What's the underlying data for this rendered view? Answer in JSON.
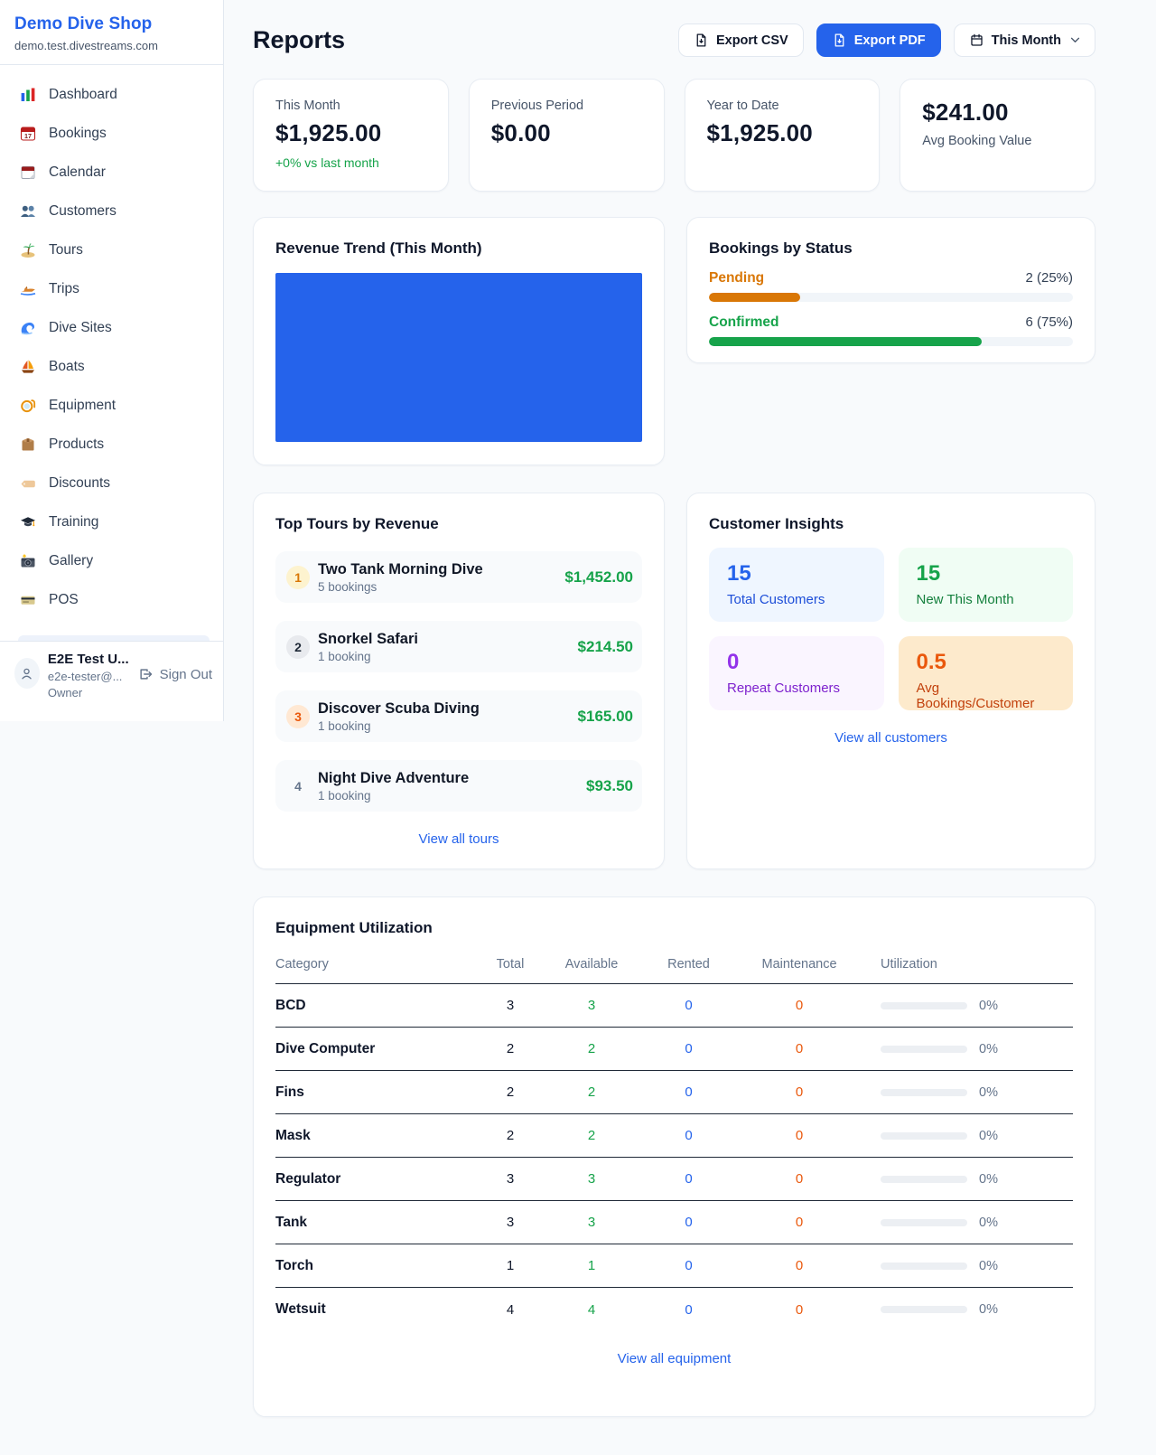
{
  "colors": {
    "accent": "#2563eb",
    "money_green": "#16a34a",
    "pending_orange": "#d97706",
    "maintenance_orange": "#ea580c",
    "rented_blue": "#2563eb"
  },
  "sidebar": {
    "shop_name": "Demo Dive Shop",
    "shop_domain": "demo.test.divestreams.com",
    "nav": [
      {
        "label": "Dashboard",
        "icon": "bar-chart-icon"
      },
      {
        "label": "Bookings",
        "icon": "calendar-date-icon"
      },
      {
        "label": "Calendar",
        "icon": "tear-calendar-icon"
      },
      {
        "label": "Customers",
        "icon": "people-icon"
      },
      {
        "label": "Tours",
        "icon": "island-icon"
      },
      {
        "label": "Trips",
        "icon": "speedboat-icon"
      },
      {
        "label": "Dive Sites",
        "icon": "wave-icon"
      },
      {
        "label": "Boats",
        "icon": "sailboat-icon"
      },
      {
        "label": "Equipment",
        "icon": "dive-mask-icon"
      },
      {
        "label": "Products",
        "icon": "package-icon"
      },
      {
        "label": "Discounts",
        "icon": "tag-icon"
      },
      {
        "label": "Training",
        "icon": "graduation-cap-icon"
      },
      {
        "label": "Gallery",
        "icon": "camera-icon"
      },
      {
        "label": "POS",
        "icon": "credit-card-icon"
      }
    ],
    "user": {
      "name": "E2E Test U...",
      "email": "e2e-tester@...",
      "role": "Owner",
      "sign_out": "Sign Out"
    }
  },
  "header": {
    "title": "Reports",
    "export_csv": "Export CSV",
    "export_pdf": "Export PDF",
    "period": "This Month"
  },
  "stats": {
    "this_month": {
      "label": "This Month",
      "value": "$1,925.00",
      "delta": "+0% vs last month"
    },
    "previous_period": {
      "label": "Previous Period",
      "value": "$0.00"
    },
    "year_to_date": {
      "label": "Year to Date",
      "value": "$1,925.00"
    },
    "avg_booking": {
      "label": "Avg Booking Value",
      "value": "$241.00"
    }
  },
  "revenue_trend": {
    "title": "Revenue Trend (This Month)",
    "fill_color": "#2563eb"
  },
  "bookings_by_status": {
    "title": "Bookings by Status",
    "rows": [
      {
        "label": "Pending",
        "value": "2 (25%)",
        "percent": 25,
        "color": "#d97706"
      },
      {
        "label": "Confirmed",
        "value": "6 (75%)",
        "percent": 75,
        "color": "#16a34a"
      }
    ]
  },
  "top_tours": {
    "title": "Top Tours by Revenue",
    "rows": [
      {
        "rank": "1",
        "name": "Two Tank Morning Dive",
        "bookings": "5 bookings",
        "revenue": "$1,452.00"
      },
      {
        "rank": "2",
        "name": "Snorkel Safari",
        "bookings": "1 booking",
        "revenue": "$214.50"
      },
      {
        "rank": "3",
        "name": "Discover Scuba Diving",
        "bookings": "1 booking",
        "revenue": "$165.00"
      },
      {
        "rank": "4",
        "name": "Night Dive Adventure",
        "bookings": "1 booking",
        "revenue": "$93.50"
      }
    ],
    "view_all": "View all tours"
  },
  "customer_insights": {
    "title": "Customer Insights",
    "tiles": [
      {
        "value": "15",
        "label": "Total Customers",
        "accent": "#2563eb"
      },
      {
        "value": "15",
        "label": "New This Month",
        "accent": "#16a34a"
      },
      {
        "value": "0",
        "label": "Repeat Customers",
        "accent": "#9333ea"
      },
      {
        "value": "0.5",
        "label": "Avg Bookings/Customer",
        "accent": "#ea580c"
      }
    ],
    "view_all": "View all customers"
  },
  "equipment": {
    "title": "Equipment Utilization",
    "columns": [
      "Category",
      "Total",
      "Available",
      "Rented",
      "Maintenance",
      "Utilization"
    ],
    "rows": [
      {
        "category": "BCD",
        "total": "3",
        "available": "3",
        "rented": "0",
        "maintenance": "0",
        "utilization": "0%"
      },
      {
        "category": "Dive Computer",
        "total": "2",
        "available": "2",
        "rented": "0",
        "maintenance": "0",
        "utilization": "0%"
      },
      {
        "category": "Fins",
        "total": "2",
        "available": "2",
        "rented": "0",
        "maintenance": "0",
        "utilization": "0%"
      },
      {
        "category": "Mask",
        "total": "2",
        "available": "2",
        "rented": "0",
        "maintenance": "0",
        "utilization": "0%"
      },
      {
        "category": "Regulator",
        "total": "3",
        "available": "3",
        "rented": "0",
        "maintenance": "0",
        "utilization": "0%"
      },
      {
        "category": "Tank",
        "total": "3",
        "available": "3",
        "rented": "0",
        "maintenance": "0",
        "utilization": "0%"
      },
      {
        "category": "Torch",
        "total": "1",
        "available": "1",
        "rented": "0",
        "maintenance": "0",
        "utilization": "0%"
      },
      {
        "category": "Wetsuit",
        "total": "4",
        "available": "4",
        "rented": "0",
        "maintenance": "0",
        "utilization": "0%"
      }
    ],
    "view_all": "View all equipment"
  }
}
